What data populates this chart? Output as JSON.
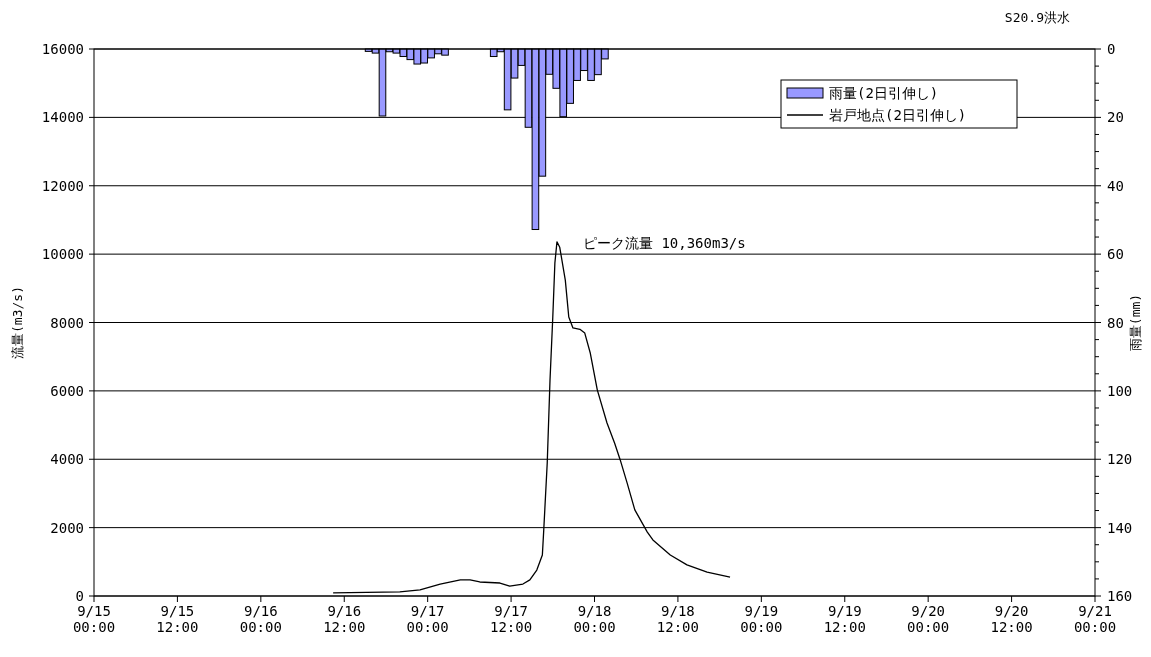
{
  "chart_data": {
    "type": "line",
    "title": "S20.9洪水",
    "ylabel": "流量(m3/s)",
    "y2label": "雨量(mm)",
    "xlim": [
      "--09-15T00:00",
      "--09-21T00:00"
    ],
    "xticks": [
      {
        "value": "--09-15T00:00",
        "label": "9/15\n00:00"
      },
      {
        "value": "--09-15T12:00",
        "label": "9/15\n12:00"
      },
      {
        "value": "--09-16T00:00",
        "label": "9/16\n00:00"
      },
      {
        "value": "--09-16T12:00",
        "label": "9/16\n12:00"
      },
      {
        "value": "--09-17T00:00",
        "label": "9/17\n00:00"
      },
      {
        "value": "--09-17T12:00",
        "label": "9/17\n12:00"
      },
      {
        "value": "--09-18T00:00",
        "label": "9/18\n00:00"
      },
      {
        "value": "--09-18T12:00",
        "label": "9/18\n12:00"
      },
      {
        "value": "--09-19T00:00",
        "label": "9/19\n00:00"
      },
      {
        "value": "--09-19T12:00",
        "label": "9/19\n12:00"
      },
      {
        "value": "--09-20T00:00",
        "label": "9/20\n00:00"
      },
      {
        "value": "--09-20T12:00",
        "label": "9/20\n12:00"
      },
      {
        "value": "--09-21T00:00",
        "label": "9/21\n00:00"
      }
    ],
    "ylim": [
      0,
      16000
    ],
    "yticks": [
      0,
      2000,
      4000,
      6000,
      8000,
      10000,
      12000,
      14000,
      16000
    ],
    "y2lim": [
      160,
      0
    ],
    "y2ticks": [
      0,
      {
        "value": 5,
        "label": null
      },
      {
        "value": 10,
        "label": null
      },
      {
        "value": 15,
        "label": null
      },
      20,
      {
        "value": 25,
        "label": null
      },
      {
        "value": 30,
        "label": null
      },
      {
        "value": 35,
        "label": null
      },
      40,
      {
        "value": 45,
        "label": null
      },
      {
        "value": 50,
        "label": null
      },
      {
        "value": 55,
        "label": null
      },
      60,
      {
        "value": 65,
        "label": null
      },
      {
        "value": 70,
        "label": null
      },
      {
        "value": 75,
        "label": null
      },
      80,
      {
        "value": 85,
        "label": null
      },
      {
        "value": 90,
        "label": null
      },
      {
        "value": 95,
        "label": null
      },
      100,
      {
        "value": 105,
        "label": null
      },
      {
        "value": 110,
        "label": null
      },
      {
        "value": 115,
        "label": null
      },
      120,
      {
        "value": 125,
        "label": null
      },
      {
        "value": 130,
        "label": null
      },
      {
        "value": 135,
        "label": null
      },
      140,
      {
        "value": 145,
        "label": null
      },
      {
        "value": 150,
        "label": null
      },
      {
        "value": 155,
        "label": null
      },
      160
    ],
    "grid": "y",
    "legend": "top right",
    "series": [
      {
        "name": "雨量(2日引伸し)",
        "type": "bar",
        "axis": "y2",
        "color": "#9999ff",
        "x": [
          "--09-16T15:30",
          "--09-16T16:30",
          "--09-16T17:30",
          "--09-16T18:30",
          "--09-16T19:30",
          "--09-16T20:30",
          "--09-16T21:30",
          "--09-16T22:30",
          "--09-16T23:30",
          "--09-17T00:30",
          "--09-17T01:30",
          "--09-17T02:30",
          "--09-17T09:30",
          "--09-17T10:30",
          "--09-17T11:30",
          "--09-17T12:30",
          "--09-17T13:30",
          "--09-17T14:30",
          "--09-17T15:30",
          "--09-17T16:30",
          "--09-17T17:30",
          "--09-17T18:30",
          "--09-17T19:30",
          "--09-17T20:30",
          "--09-17T21:30",
          "--09-17T22:30",
          "--09-17T23:30",
          "--09-18T00:30",
          "--09-18T01:30"
        ],
        "values": [
          0.7,
          1.2,
          19.6,
          0.8,
          1.2,
          2.2,
          3.1,
          4.4,
          4.1,
          2.6,
          1.4,
          1.8,
          2.2,
          0.8,
          17.8,
          8.5,
          4.8,
          22.9,
          52.8,
          37.2,
          7.4,
          11.5,
          19.8,
          15.9,
          9.2,
          6.3,
          9.2,
          7.5,
          2.9
        ]
      },
      {
        "name": "岩戸地点(2日引伸し)",
        "color": "#000000",
        "x": [
          "--09-16T10:24",
          "--09-16T20:00",
          "--09-16T22:54",
          "--09-17T01:48",
          "--09-17T04:42",
          "--09-17T06:06",
          "--09-17T07:30",
          "--09-17T10:24",
          "--09-17T11:48",
          "--09-17T13:42",
          "--09-17T14:42",
          "--09-17T15:42",
          "--09-17T16:30",
          "--09-17T16:42",
          "--09-17T17:12",
          "--09-17T17:36",
          "--09-17T18:00",
          "--09-17T18:18",
          "--09-17T18:36",
          "--09-17T19:00",
          "--09-17T19:48",
          "--09-17T20:18",
          "--09-17T20:54",
          "--09-17T21:54",
          "--09-17T22:36",
          "--09-17T23:24",
          "--09-18T00:24",
          "--09-18T01:48",
          "--09-18T02:54",
          "--09-18T03:42",
          "--09-18T04:42",
          "--09-18T05:48",
          "--09-18T07:36",
          "--09-18T08:24",
          "--09-18T10:54",
          "--09-18T13:18",
          "--09-18T16:12",
          "--09-18T19:30"
        ],
        "values": [
          90,
          120,
          180,
          350,
          470,
          470,
          410,
          380,
          290,
          350,
          470,
          760,
          1200,
          1930,
          3890,
          6320,
          8160,
          9740,
          10360,
          10200,
          9240,
          8160,
          7840,
          7800,
          7690,
          7100,
          6030,
          5060,
          4470,
          3980,
          3300,
          2520,
          1870,
          1640,
          1200,
          910,
          700,
          550
        ]
      }
    ],
    "annotations": [
      {
        "text": "ピーク流量 10,360m3/s",
        "x": "--09-17T18:36",
        "y": 10360
      }
    ]
  }
}
